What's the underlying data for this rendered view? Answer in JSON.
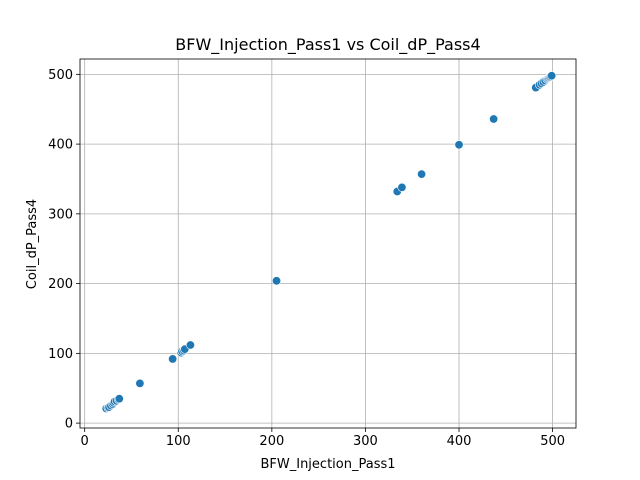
{
  "chart_data": {
    "type": "scatter",
    "title": "BFW_Injection_Pass1 vs Coil_dP_Pass4",
    "xlabel": "BFW_Injection_Pass1",
    "ylabel": "Coil_dP_Pass4",
    "xlim": [
      -5,
      525
    ],
    "ylim": [
      -7,
      522
    ],
    "xticks": [
      0,
      100,
      200,
      300,
      400,
      500
    ],
    "yticks": [
      0,
      100,
      200,
      300,
      400,
      500
    ],
    "xtick_labels": [
      "0",
      "100",
      "200",
      "300",
      "400",
      "500"
    ],
    "ytick_labels": [
      "0",
      "100",
      "200",
      "300",
      "400",
      "500"
    ],
    "grid": true,
    "marker_color": "#1f77b4",
    "points": [
      {
        "x": 23,
        "y": 21
      },
      {
        "x": 25,
        "y": 22
      },
      {
        "x": 26,
        "y": 23
      },
      {
        "x": 28,
        "y": 25
      },
      {
        "x": 30,
        "y": 27
      },
      {
        "x": 31,
        "y": 29
      },
      {
        "x": 32,
        "y": 31
      },
      {
        "x": 34,
        "y": 32
      },
      {
        "x": 36,
        "y": 34
      },
      {
        "x": 37,
        "y": 35
      },
      {
        "x": 59,
        "y": 57
      },
      {
        "x": 94,
        "y": 92
      },
      {
        "x": 103,
        "y": 101
      },
      {
        "x": 104,
        "y": 103
      },
      {
        "x": 106,
        "y": 104
      },
      {
        "x": 107,
        "y": 106
      },
      {
        "x": 113,
        "y": 112
      },
      {
        "x": 205,
        "y": 204
      },
      {
        "x": 334,
        "y": 332
      },
      {
        "x": 339,
        "y": 338
      },
      {
        "x": 360,
        "y": 357
      },
      {
        "x": 400,
        "y": 399
      },
      {
        "x": 437,
        "y": 436
      },
      {
        "x": 482,
        "y": 481
      },
      {
        "x": 486,
        "y": 485
      },
      {
        "x": 488,
        "y": 487
      },
      {
        "x": 490,
        "y": 489
      },
      {
        "x": 492,
        "y": 491
      },
      {
        "x": 494,
        "y": 493
      },
      {
        "x": 495,
        "y": 494
      },
      {
        "x": 496,
        "y": 495
      },
      {
        "x": 497,
        "y": 496
      },
      {
        "x": 498,
        "y": 497
      },
      {
        "x": 499,
        "y": 498
      }
    ]
  }
}
